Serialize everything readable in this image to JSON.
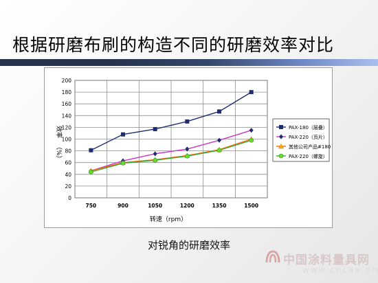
{
  "slide": {
    "title": "根据研磨布刷的构造不同的研磨效率对比",
    "caption": "对锐角的研磨效率"
  },
  "watermark": {
    "text": "中国涂料量具网",
    "url": "www.cncaa.org"
  },
  "chart_data": {
    "type": "line",
    "x": [
      "750",
      "900",
      "1050",
      "1200",
      "1350",
      "1500"
    ],
    "xlabel": "转速（rpm）",
    "ylabel_main": "效率",
    "ylabel_unit": "（%）",
    "ylim": [
      0,
      200
    ],
    "yticks": [
      0,
      20,
      40,
      60,
      80,
      100,
      120,
      140,
      160,
      180,
      200
    ],
    "grid": true,
    "legend_position": "right",
    "series": [
      {
        "name": "PAX-180（层叠）",
        "values": [
          81,
          108,
          117,
          130,
          147,
          180
        ],
        "color": "#1f2d6e",
        "marker": "square"
      },
      {
        "name": "PAX-220（页片）",
        "values": [
          46,
          63,
          75,
          83,
          98,
          115
        ],
        "color": "#cc33cc",
        "marker_color": "#1f2d6e",
        "marker": "diamond"
      },
      {
        "name": "其他公司产品#180",
        "values": [
          46,
          60,
          65,
          72,
          82,
          100
        ],
        "color": "#ff6600",
        "marker_color": "#f2b600",
        "marker": "triangle"
      },
      {
        "name": "PAX-220（螺旋）",
        "values": [
          44,
          59,
          64,
          71,
          81,
          98
        ],
        "color": "#33aa33",
        "marker_color": "#66dd22",
        "marker": "circle"
      }
    ]
  }
}
